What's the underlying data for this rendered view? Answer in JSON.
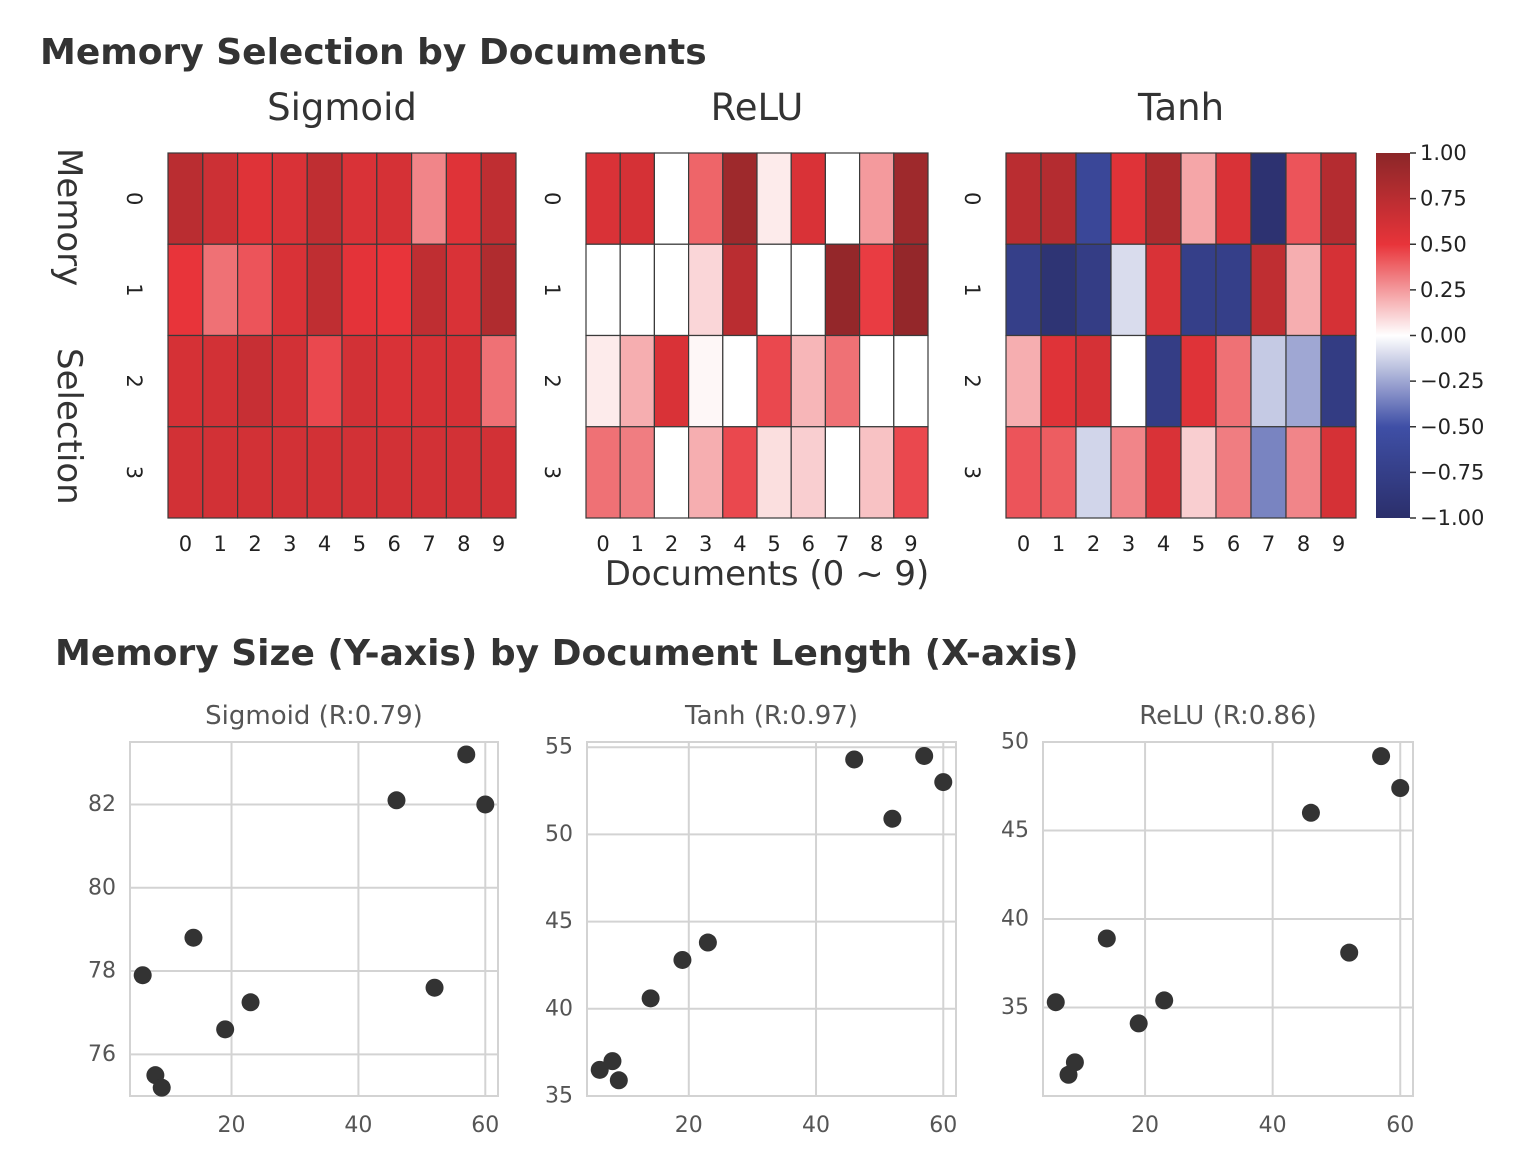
{
  "figure": {
    "top_title": "Memory Selection by Documents",
    "bottom_title": "Memory Size (Y-axis) by Document Length (X-axis)",
    "heatmap_ylabel_1": "Memory",
    "heatmap_ylabel_2": "Selection",
    "heatmap_xlabel": "Documents (0 ~ 9)"
  },
  "colors": {
    "colormap": [
      "#2b2f6b",
      "#3f4fa6",
      "#ffffff",
      "#e8343a",
      "#8b2628"
    ],
    "point": "#333333",
    "grid": "#d3d3d3"
  },
  "chart_data": [
    {
      "type": "heatmap",
      "title": "Sigmoid",
      "x_ticks": [
        "0",
        "1",
        "2",
        "3",
        "4",
        "5",
        "6",
        "7",
        "8",
        "9"
      ],
      "y_ticks": [
        "0",
        "1",
        "2",
        "3"
      ],
      "vmin": -1,
      "vmax": 1,
      "values": [
        [
          0.75,
          0.65,
          0.55,
          0.58,
          0.72,
          0.58,
          0.6,
          0.3,
          0.55,
          0.72
        ],
        [
          0.5,
          0.35,
          0.42,
          0.58,
          0.72,
          0.52,
          0.5,
          0.72,
          0.58,
          0.8
        ],
        [
          0.6,
          0.62,
          0.68,
          0.62,
          0.45,
          0.62,
          0.58,
          0.6,
          0.6,
          0.35
        ],
        [
          0.62,
          0.62,
          0.62,
          0.62,
          0.62,
          0.62,
          0.62,
          0.62,
          0.62,
          0.62
        ]
      ]
    },
    {
      "type": "heatmap",
      "title": "ReLU",
      "x_ticks": [
        "0",
        "1",
        "2",
        "3",
        "4",
        "5",
        "6",
        "7",
        "8",
        "9"
      ],
      "y_ticks": [
        "0",
        "1",
        "2",
        "3"
      ],
      "vmin": -1,
      "vmax": 1,
      "values": [
        [
          0.58,
          0.6,
          0.0,
          0.38,
          0.9,
          0.05,
          0.58,
          0.0,
          0.25,
          0.9
        ],
        [
          0.0,
          0.0,
          0.0,
          0.1,
          0.75,
          0.0,
          0.0,
          0.95,
          0.48,
          0.95
        ],
        [
          0.05,
          0.2,
          0.58,
          0.02,
          0.0,
          0.45,
          0.18,
          0.35,
          0.0,
          0.0
        ],
        [
          0.35,
          0.32,
          0.0,
          0.2,
          0.45,
          0.08,
          0.12,
          0.0,
          0.15,
          0.45
        ]
      ]
    },
    {
      "type": "heatmap",
      "title": "Tanh",
      "x_ticks": [
        "0",
        "1",
        "2",
        "3",
        "4",
        "5",
        "6",
        "7",
        "8",
        "9"
      ],
      "y_ticks": [
        "0",
        "1",
        "2",
        "3"
      ],
      "vmin": -1,
      "vmax": 1,
      "values": [
        [
          0.75,
          0.78,
          -0.62,
          0.55,
          0.82,
          0.22,
          0.58,
          -0.95,
          0.42,
          0.78
        ],
        [
          -0.75,
          -0.92,
          -0.78,
          -0.1,
          0.58,
          -0.75,
          -0.75,
          0.72,
          0.2,
          0.6
        ],
        [
          0.2,
          0.55,
          0.6,
          0.0,
          -0.78,
          0.55,
          0.35,
          -0.15,
          -0.25,
          -0.8
        ],
        [
          0.42,
          0.4,
          -0.12,
          0.3,
          0.58,
          0.12,
          0.32,
          -0.35,
          0.3,
          0.6
        ]
      ]
    },
    {
      "type": "scatter",
      "title": "Sigmoid (R:0.79)",
      "xlim": [
        4,
        62
      ],
      "ylim": [
        75,
        83.5
      ],
      "xticks": [
        20,
        40,
        60
      ],
      "yticks": [
        76,
        78,
        80,
        82
      ],
      "grid": true,
      "points": [
        {
          "x": 6,
          "y": 77.9
        },
        {
          "x": 8,
          "y": 75.5
        },
        {
          "x": 9,
          "y": 75.2
        },
        {
          "x": 14,
          "y": 78.8
        },
        {
          "x": 19,
          "y": 76.6
        },
        {
          "x": 23,
          "y": 77.25
        },
        {
          "x": 46,
          "y": 82.1
        },
        {
          "x": 52,
          "y": 77.6
        },
        {
          "x": 57,
          "y": 83.2
        },
        {
          "x": 60,
          "y": 82.0
        }
      ]
    },
    {
      "type": "scatter",
      "title": "Tanh (R:0.97)",
      "xlim": [
        4,
        62
      ],
      "ylim": [
        35,
        55.3
      ],
      "xticks": [
        20,
        40,
        60
      ],
      "yticks": [
        35,
        40,
        45,
        50,
        55
      ],
      "grid": true,
      "points": [
        {
          "x": 6,
          "y": 36.5
        },
        {
          "x": 8,
          "y": 37.0
        },
        {
          "x": 9,
          "y": 35.9
        },
        {
          "x": 14,
          "y": 40.6
        },
        {
          "x": 19,
          "y": 42.8
        },
        {
          "x": 23,
          "y": 43.8
        },
        {
          "x": 46,
          "y": 54.3
        },
        {
          "x": 52,
          "y": 50.9
        },
        {
          "x": 57,
          "y": 54.5
        },
        {
          "x": 60,
          "y": 53.0
        }
      ]
    },
    {
      "type": "scatter",
      "title": "ReLU (R:0.86)",
      "xlim": [
        4,
        62
      ],
      "ylim": [
        30,
        50
      ],
      "xticks": [
        20,
        40,
        60
      ],
      "yticks": [
        35,
        40,
        45,
        50
      ],
      "grid": true,
      "points": [
        {
          "x": 6,
          "y": 35.3
        },
        {
          "x": 8,
          "y": 31.2
        },
        {
          "x": 9,
          "y": 31.9
        },
        {
          "x": 14,
          "y": 38.9
        },
        {
          "x": 19,
          "y": 34.1
        },
        {
          "x": 23,
          "y": 35.4
        },
        {
          "x": 46,
          "y": 46.0
        },
        {
          "x": 52,
          "y": 38.1
        },
        {
          "x": 57,
          "y": 49.2
        },
        {
          "x": 60,
          "y": 47.4
        }
      ]
    }
  ],
  "colorbar": {
    "ticks": [
      "1.00",
      "0.75",
      "0.50",
      "0.25",
      "0.00",
      "−0.25",
      "−0.50",
      "−0.75",
      "−1.00"
    ]
  }
}
